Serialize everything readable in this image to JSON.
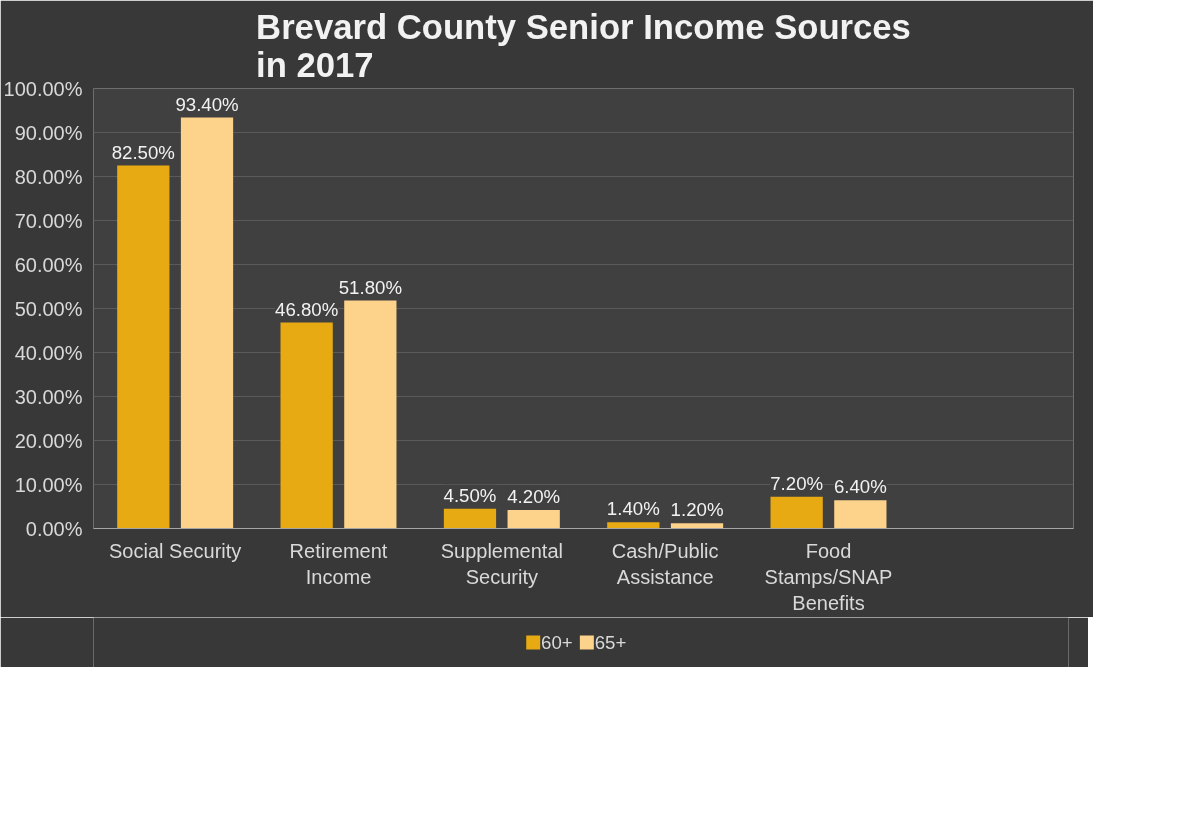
{
  "chart_data": {
    "type": "bar",
    "title": "Brevard County Senior Income Sources in 2017",
    "categories": [
      "Social Security",
      "Retirement Income",
      "Supplemental Security",
      "Cash/Public Assistance",
      "Food Stamps/SNAP Benefits",
      null
    ],
    "series": [
      {
        "name": "60+",
        "color": "#e8aa12",
        "values": [
          82.5,
          46.8,
          4.5,
          1.4,
          7.2,
          null
        ],
        "value_labels": [
          "82.50%",
          "46.80%",
          "4.50%",
          "1.40%",
          "7.20%",
          null
        ]
      },
      {
        "name": "65+",
        "color": "#fdd28a",
        "values": [
          93.4,
          51.8,
          4.2,
          1.2,
          6.4,
          null
        ],
        "value_labels": [
          "93.40%",
          "51.80%",
          "4.20%",
          "1.20%",
          "6.40%",
          null
        ]
      }
    ],
    "ylim": [
      0,
      100
    ],
    "yticks": [
      {
        "value": 0,
        "label": "0.00%"
      },
      {
        "value": 10,
        "label": "10.00%"
      },
      {
        "value": 20,
        "label": "20.00%"
      },
      {
        "value": 30,
        "label": "30.00%"
      },
      {
        "value": 40,
        "label": "40.00%"
      },
      {
        "value": 50,
        "label": "50.00%"
      },
      {
        "value": 60,
        "label": "60.00%"
      },
      {
        "value": 70,
        "label": "70.00%"
      },
      {
        "value": 80,
        "label": "80.00%"
      },
      {
        "value": 90,
        "label": "90.00%"
      },
      {
        "value": 100,
        "label": "100.00%"
      }
    ],
    "grid": "y",
    "legend": "bottom"
  }
}
